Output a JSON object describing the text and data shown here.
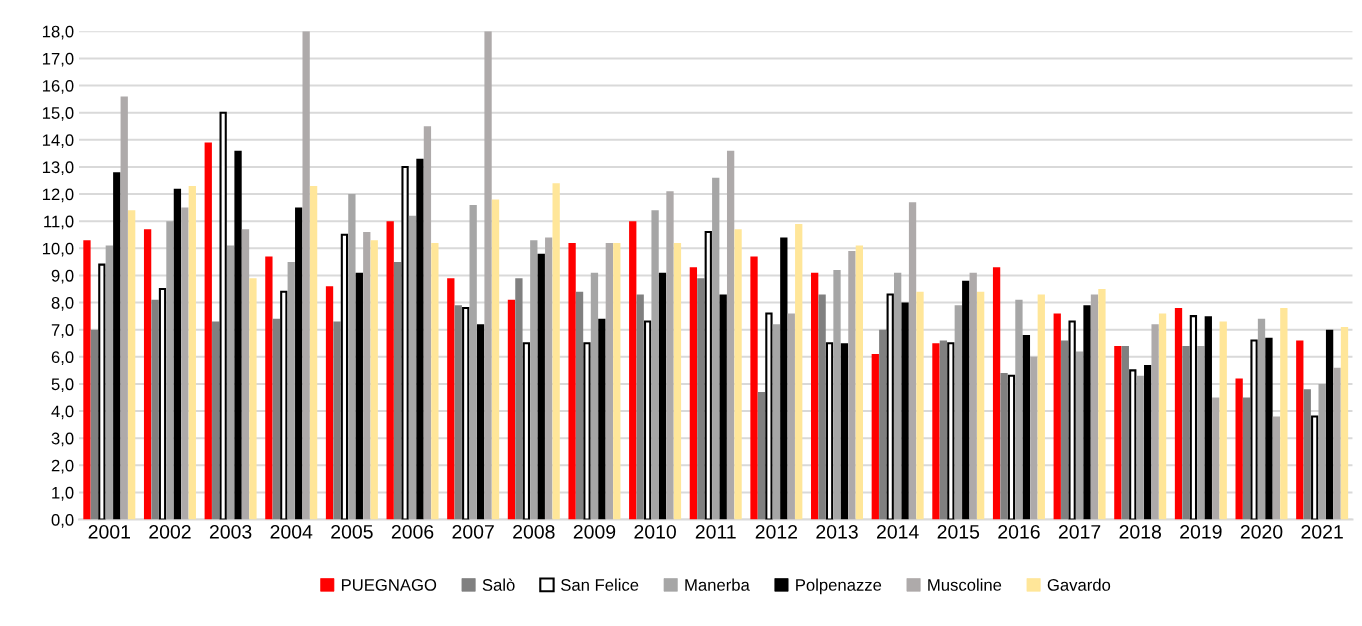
{
  "chart_data": {
    "type": "bar",
    "categories": [
      "2001",
      "2002",
      "2003",
      "2004",
      "2005",
      "2006",
      "2007",
      "2008",
      "2009",
      "2010",
      "2011",
      "2012",
      "2013",
      "2014",
      "2015",
      "2016",
      "2017",
      "2018",
      "2019",
      "2020",
      "2021"
    ],
    "series": [
      {
        "name": "PUEGNAGO",
        "color": "#ff0000",
        "values": [
          10.3,
          10.7,
          13.9,
          9.7,
          8.6,
          11.0,
          8.9,
          8.1,
          10.2,
          11.0,
          9.3,
          9.7,
          9.1,
          6.1,
          6.5,
          9.3,
          7.6,
          6.4,
          7.8,
          5.2,
          6.6
        ]
      },
      {
        "name": "Salò",
        "color": "#808080",
        "values": [
          7.0,
          8.1,
          7.3,
          7.4,
          7.3,
          9.5,
          7.9,
          8.9,
          8.4,
          8.3,
          8.9,
          4.7,
          8.3,
          7.0,
          6.6,
          5.4,
          6.6,
          6.4,
          6.4,
          4.5,
          4.8
        ]
      },
      {
        "name": "San Felice",
        "color": "#ffffff",
        "values": [
          9.4,
          8.5,
          15.0,
          8.4,
          10.5,
          13.0,
          7.8,
          6.5,
          6.5,
          7.3,
          10.6,
          7.6,
          6.5,
          8.3,
          6.5,
          5.3,
          7.3,
          5.5,
          7.5,
          6.6,
          3.8
        ]
      },
      {
        "name": "Manerba",
        "color": "#a6a6a6",
        "values": [
          10.1,
          11.0,
          10.1,
          9.5,
          12.0,
          11.2,
          11.6,
          10.3,
          9.1,
          11.4,
          12.6,
          7.2,
          9.2,
          9.1,
          7.9,
          8.1,
          6.2,
          5.3,
          6.4,
          7.4,
          5.0
        ]
      },
      {
        "name": "Polpenazze",
        "color": "#000000",
        "values": [
          12.8,
          12.2,
          13.6,
          11.5,
          9.1,
          13.3,
          7.2,
          9.8,
          7.4,
          9.1,
          8.3,
          10.4,
          6.5,
          8.0,
          8.8,
          6.8,
          7.9,
          5.7,
          7.5,
          6.7,
          7.0
        ]
      },
      {
        "name": "Muscoline",
        "color": "#aeaaaa",
        "values": [
          15.6,
          11.5,
          10.7,
          18.0,
          10.6,
          14.5,
          18.0,
          10.4,
          10.2,
          12.1,
          13.6,
          7.6,
          9.9,
          11.7,
          9.1,
          6.0,
          8.3,
          7.2,
          4.5,
          3.8,
          5.6
        ]
      },
      {
        "name": "Gavardo",
        "color": "#ffe699",
        "values": [
          11.4,
          12.3,
          8.9,
          12.3,
          10.3,
          10.2,
          11.8,
          12.4,
          10.2,
          10.2,
          10.7,
          10.9,
          10.1,
          8.4,
          8.4,
          8.3,
          8.5,
          7.6,
          7.3,
          7.8,
          7.1
        ]
      }
    ],
    "ylim": [
      0,
      18
    ],
    "yticks": [
      {
        "value": 0,
        "label": "0,0"
      },
      {
        "value": 1,
        "label": "1,0"
      },
      {
        "value": 2,
        "label": "2,0"
      },
      {
        "value": 3,
        "label": "3,0"
      },
      {
        "value": 4,
        "label": "4,0"
      },
      {
        "value": 5,
        "label": "5,0"
      },
      {
        "value": 6,
        "label": "6,0"
      },
      {
        "value": 7,
        "label": "7,0"
      },
      {
        "value": 8,
        "label": "8,0"
      },
      {
        "value": 9,
        "label": "9,0"
      },
      {
        "value": 10,
        "label": "10,0"
      },
      {
        "value": 11,
        "label": "11,0"
      },
      {
        "value": 12,
        "label": "12,0"
      },
      {
        "value": 13,
        "label": "13,0"
      },
      {
        "value": 14,
        "label": "14,0"
      },
      {
        "value": 15,
        "label": "15,0"
      },
      {
        "value": 16,
        "label": "16,0"
      },
      {
        "value": 17,
        "label": "17,0"
      },
      {
        "value": 18,
        "label": "18,0"
      }
    ],
    "grid": "y",
    "legend": "bottom"
  }
}
